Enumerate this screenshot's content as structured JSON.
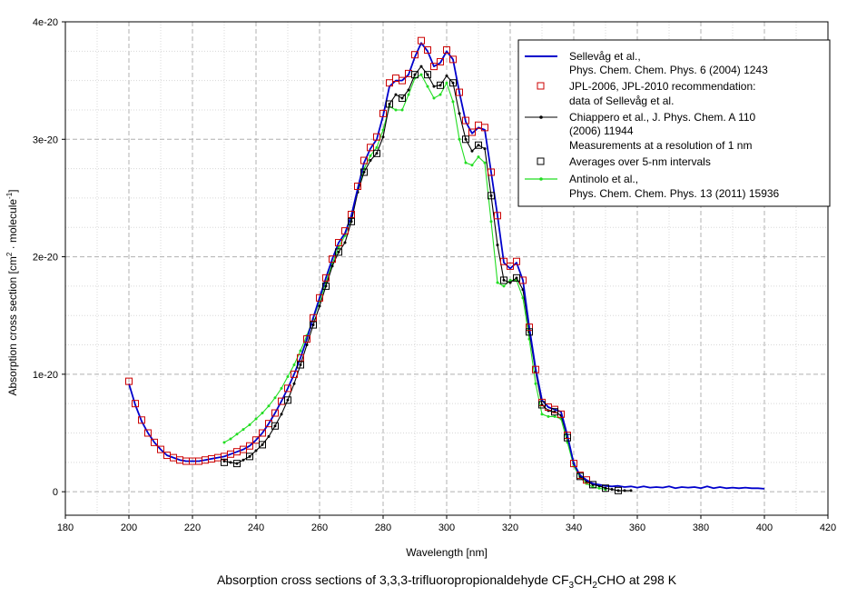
{
  "chart_data": {
    "type": "line",
    "caption": {
      "prefix": "Absorption cross sections of 3,3,3-trifluoropropionaldehyde CF",
      "sub1": "3",
      "mid1": "CH",
      "sub2": "2",
      "suffix": "CHO at 298 K"
    },
    "xlabel": "Wavelength [nm]",
    "ylabel": {
      "prefix": "Absorption cross section [cm",
      "sup1": "2",
      "mid": " · molecule",
      "sup2": "-1",
      "suffix": "]"
    },
    "xlim": [
      180,
      420
    ],
    "ylim": [
      -2e-21,
      4e-20
    ],
    "x_ticks": [
      180,
      200,
      220,
      240,
      260,
      280,
      300,
      320,
      340,
      360,
      380,
      400,
      420
    ],
    "y_ticks": [
      {
        "value": 0,
        "label": "0"
      },
      {
        "value": 1e-20,
        "label": "1e-20"
      },
      {
        "value": 2e-20,
        "label": "2e-20"
      },
      {
        "value": 3e-20,
        "label": "3e-20"
      },
      {
        "value": 4e-20,
        "label": "4e-20"
      }
    ],
    "grid": true,
    "legend_position": "top-right",
    "series": [
      {
        "name": "Sellevåg et al.,",
        "name2": "Phys. Chem. Chem. Phys. 6 (2004) 1243",
        "color": "#0000cc",
        "marker": "none",
        "x": [
          200,
          202,
          204,
          206,
          208,
          210,
          212,
          214,
          216,
          218,
          220,
          222,
          224,
          226,
          228,
          230,
          232,
          234,
          236,
          238,
          240,
          242,
          244,
          246,
          248,
          250,
          252,
          254,
          256,
          258,
          260,
          262,
          264,
          266,
          268,
          270,
          272,
          274,
          276,
          278,
          280,
          282,
          284,
          286,
          288,
          290,
          292,
          294,
          296,
          298,
          300,
          302,
          304,
          306,
          308,
          310,
          312,
          314,
          316,
          318,
          320,
          322,
          324,
          326,
          328,
          330,
          332,
          334,
          336,
          338,
          340,
          342,
          344,
          346,
          348,
          350,
          352,
          354,
          356,
          358,
          360,
          362,
          364,
          366,
          368,
          370,
          372,
          374,
          376,
          378,
          380,
          382,
          384,
          386,
          388,
          390,
          392,
          394,
          396,
          398,
          400
        ],
        "y": [
          9.2e-21,
          7.4e-21,
          6e-21,
          5e-21,
          4.2e-21,
          3.6e-21,
          3.1e-21,
          2.9e-21,
          2.7e-21,
          2.6e-21,
          2.6e-21,
          2.6e-21,
          2.7e-21,
          2.8e-21,
          2.9e-21,
          3e-21,
          3.2e-21,
          3.4e-21,
          3.6e-21,
          3.9e-21,
          4.4e-21,
          5e-21,
          5.8e-21,
          6.7e-21,
          7.7e-21,
          8.8e-21,
          1e-20,
          1.14e-20,
          1.3e-20,
          1.48e-20,
          1.65e-20,
          1.82e-20,
          1.98e-20,
          2.12e-20,
          2.2e-20,
          2.35e-20,
          2.58e-20,
          2.8e-20,
          2.92e-20,
          3e-20,
          3.2e-20,
          3.45e-20,
          3.5e-20,
          3.5e-20,
          3.55e-20,
          3.7e-20,
          3.82e-20,
          3.75e-20,
          3.62e-20,
          3.65e-20,
          3.75e-20,
          3.68e-20,
          3.4e-20,
          3.15e-20,
          3.05e-20,
          3.1e-20,
          3.08e-20,
          2.72e-20,
          2.35e-20,
          1.95e-20,
          1.9e-20,
          1.95e-20,
          1.8e-20,
          1.4e-20,
          1.05e-20,
          7.8e-21,
          7.2e-21,
          7e-21,
          6.8e-21,
          4.8e-21,
          2.4e-21,
          1.4e-21,
          1e-21,
          7e-22,
          6e-22,
          5e-22,
          4.5e-22,
          5e-22,
          4e-22,
          4.5e-22,
          3.5e-22,
          4.5e-22,
          3.5e-22,
          4e-22,
          3.5e-22,
          4.5e-22,
          3e-22,
          4e-22,
          3.5e-22,
          4e-22,
          3e-22,
          4.5e-22,
          3e-22,
          4e-22,
          3e-22,
          3.5e-22,
          3e-22,
          3.5e-22,
          3e-22,
          3e-22,
          2.5e-22
        ]
      },
      {
        "name": "JPL-2006, JPL-2010 recommendation:",
        "name2": "data of Sellevåg et al.",
        "color": "#cc0000",
        "marker": "open-square",
        "x": [
          200,
          202,
          204,
          206,
          208,
          210,
          212,
          214,
          216,
          218,
          220,
          222,
          224,
          226,
          228,
          230,
          232,
          234,
          236,
          238,
          240,
          242,
          244,
          246,
          248,
          250,
          252,
          254,
          256,
          258,
          260,
          262,
          264,
          266,
          268,
          270,
          272,
          274,
          276,
          278,
          280,
          282,
          284,
          286,
          288,
          290,
          292,
          294,
          296,
          298,
          300,
          302,
          304,
          306,
          308,
          310,
          312,
          314,
          316,
          318,
          320,
          322,
          324,
          326,
          328,
          330,
          332,
          334,
          336,
          338,
          340,
          342,
          344
        ],
        "y": [
          9.4e-21,
          7.5e-21,
          6.1e-21,
          5e-21,
          4.2e-21,
          3.6e-21,
          3.1e-21,
          2.9e-21,
          2.7e-21,
          2.6e-21,
          2.6e-21,
          2.6e-21,
          2.7e-21,
          2.8e-21,
          2.9e-21,
          3e-21,
          3.2e-21,
          3.4e-21,
          3.6e-21,
          3.9e-21,
          4.4e-21,
          5e-21,
          5.8e-21,
          6.7e-21,
          7.7e-21,
          8.8e-21,
          1e-20,
          1.14e-20,
          1.3e-20,
          1.48e-20,
          1.65e-20,
          1.82e-20,
          1.98e-20,
          2.12e-20,
          2.22e-20,
          2.36e-20,
          2.6e-20,
          2.82e-20,
          2.93e-20,
          3.02e-20,
          3.22e-20,
          3.48e-20,
          3.52e-20,
          3.5e-20,
          3.56e-20,
          3.72e-20,
          3.84e-20,
          3.76e-20,
          3.62e-20,
          3.66e-20,
          3.76e-20,
          3.68e-20,
          3.4e-20,
          3.16e-20,
          3.06e-20,
          3.12e-20,
          3.1e-20,
          2.72e-20,
          2.35e-20,
          1.96e-20,
          1.92e-20,
          1.96e-20,
          1.8e-20,
          1.4e-20,
          1.04e-20,
          7.6e-21,
          7.2e-21,
          7e-21,
          6.6e-21,
          4.8e-21,
          2.4e-21,
          1.4e-21,
          1e-21
        ]
      },
      {
        "name": "Chiappero et al., J. Phys. Chem. A 110",
        "name2": "(2006) 11944",
        "name3": "Measurements at a resolution of 1 nm",
        "color": "#000000",
        "marker": "small-dot",
        "x": [
          230,
          232,
          234,
          236,
          238,
          240,
          242,
          244,
          246,
          248,
          250,
          252,
          254,
          256,
          258,
          260,
          262,
          264,
          266,
          268,
          270,
          272,
          274,
          276,
          278,
          280,
          282,
          284,
          286,
          288,
          290,
          292,
          294,
          296,
          298,
          300,
          302,
          304,
          306,
          308,
          310,
          312,
          314,
          316,
          318,
          320,
          322,
          324,
          326,
          328,
          330,
          332,
          334,
          336,
          338,
          340,
          342,
          344,
          346,
          348,
          350,
          352,
          354,
          356,
          358
        ],
        "y": [
          2.6e-21,
          2.5e-21,
          2.4e-21,
          2.7e-21,
          3e-21,
          3.5e-21,
          4e-21,
          4.7e-21,
          5.6e-21,
          6.6e-21,
          7.8e-21,
          9.2e-21,
          1.08e-20,
          1.25e-20,
          1.42e-20,
          1.58e-20,
          1.75e-20,
          1.92e-20,
          2.04e-20,
          2.12e-20,
          2.3e-20,
          2.55e-20,
          2.72e-20,
          2.82e-20,
          2.88e-20,
          3.02e-20,
          3.3e-20,
          3.38e-20,
          3.35e-20,
          3.42e-20,
          3.55e-20,
          3.62e-20,
          3.55e-20,
          3.45e-20,
          3.46e-20,
          3.54e-20,
          3.48e-20,
          3.22e-20,
          3e-20,
          2.9e-20,
          2.95e-20,
          2.92e-20,
          2.52e-20,
          2.1e-20,
          1.8e-20,
          1.78e-20,
          1.82e-20,
          1.72e-20,
          1.36e-20,
          1.02e-20,
          7.4e-21,
          6.9e-21,
          6.8e-21,
          6.5e-21,
          4.6e-21,
          2.4e-21,
          1.3e-21,
          9e-22,
          6e-22,
          5e-22,
          3e-22,
          2e-22,
          1e-22,
          1e-22,
          1e-22
        ]
      },
      {
        "name": "Averages over 5-nm intervals",
        "color": "#000000",
        "marker": "open-square",
        "x": [
          230,
          234,
          238,
          242,
          246,
          250,
          254,
          258,
          262,
          266,
          270,
          274,
          278,
          282,
          286,
          290,
          294,
          298,
          302,
          306,
          310,
          314,
          318,
          322,
          326,
          330,
          334,
          338,
          342,
          346,
          350,
          354
        ],
        "y": [
          2.5e-21,
          2.4e-21,
          3e-21,
          4e-21,
          5.6e-21,
          7.8e-21,
          1.08e-20,
          1.42e-20,
          1.75e-20,
          2.04e-20,
          2.3e-20,
          2.72e-20,
          2.88e-20,
          3.3e-20,
          3.35e-20,
          3.55e-20,
          3.55e-20,
          3.46e-20,
          3.48e-20,
          3e-20,
          2.95e-20,
          2.52e-20,
          1.8e-20,
          1.82e-20,
          1.36e-20,
          7.4e-21,
          6.8e-21,
          4.6e-21,
          1.3e-21,
          6e-22,
          3e-22,
          1e-22
        ]
      },
      {
        "name": "Antinolo et al.,",
        "name2": "Phys. Chem. Chem. Phys. 13 (2011) 15936",
        "color": "#22dd22",
        "marker": "small-dot",
        "x": [
          230,
          232,
          234,
          236,
          238,
          240,
          242,
          244,
          246,
          248,
          250,
          252,
          254,
          256,
          258,
          260,
          262,
          264,
          266,
          268,
          270,
          272,
          274,
          276,
          278,
          280,
          282,
          284,
          286,
          288,
          290,
          292,
          294,
          296,
          298,
          300,
          302,
          304,
          306,
          308,
          310,
          312,
          314,
          316,
          318,
          320,
          322,
          324,
          326,
          328,
          330,
          332,
          334,
          336,
          338,
          340,
          342,
          344,
          346,
          348,
          350
        ],
        "y": [
          4.2e-21,
          4.5e-21,
          4.9e-21,
          5.3e-21,
          5.7e-21,
          6.2e-21,
          6.7e-21,
          7.3e-21,
          8e-21,
          8.8e-21,
          9.8e-21,
          1.08e-20,
          1.2e-20,
          1.33e-20,
          1.47e-20,
          1.62e-20,
          1.78e-20,
          1.94e-20,
          2.08e-20,
          2.18e-20,
          2.33e-20,
          2.55e-20,
          2.75e-20,
          2.86e-20,
          2.93e-20,
          3.08e-20,
          3.28e-20,
          3.25e-20,
          3.25e-20,
          3.38e-20,
          3.52e-20,
          3.55e-20,
          3.45e-20,
          3.35e-20,
          3.38e-20,
          3.48e-20,
          3.32e-20,
          3e-20,
          2.8e-20,
          2.78e-20,
          2.85e-20,
          2.8e-20,
          2.3e-20,
          1.78e-20,
          1.75e-20,
          1.8e-20,
          1.8e-20,
          1.65e-20,
          1.3e-20,
          9.2e-21,
          6.6e-21,
          6.4e-21,
          6.4e-21,
          6.2e-21,
          4.2e-21,
          2.2e-21,
          1.2e-21,
          7e-22,
          4e-22,
          3e-22,
          2e-22
        ]
      }
    ]
  }
}
